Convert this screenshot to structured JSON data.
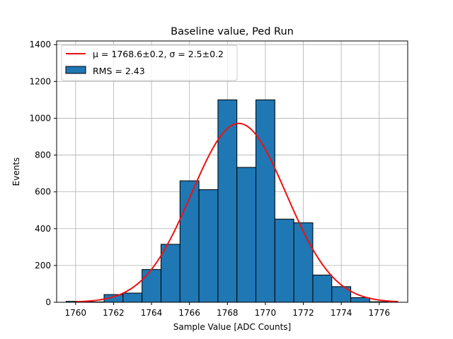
{
  "chart_data": {
    "type": "bar",
    "title": "Baseline value, Ped Run",
    "xlabel": "Sample Value [ADC Counts]",
    "ylabel": "Events",
    "xlim": [
      1759,
      1777.5
    ],
    "ylim": [
      0,
      1420
    ],
    "xticks": [
      1760,
      1762,
      1764,
      1766,
      1768,
      1770,
      1772,
      1774,
      1776
    ],
    "yticks": [
      0,
      200,
      400,
      600,
      800,
      1000,
      1200,
      1400
    ],
    "grid": true,
    "bin_width": 1,
    "bins": [
      {
        "x": 1760,
        "value": 5
      },
      {
        "x": 1761,
        "value": 2
      },
      {
        "x": 1762,
        "value": 42
      },
      {
        "x": 1763,
        "value": 50
      },
      {
        "x": 1764,
        "value": 178
      },
      {
        "x": 1765,
        "value": 315
      },
      {
        "x": 1766,
        "value": 660
      },
      {
        "x": 1767,
        "value": 612
      },
      {
        "x": 1768,
        "value": 1100
      },
      {
        "x": 1769,
        "value": 733
      },
      {
        "x": 1770,
        "value": 1100
      },
      {
        "x": 1771,
        "value": 452
      },
      {
        "x": 1772,
        "value": 432
      },
      {
        "x": 1773,
        "value": 148
      },
      {
        "x": 1774,
        "value": 85
      },
      {
        "x": 1775,
        "value": 25
      },
      {
        "x": 1776,
        "value": 3
      }
    ],
    "fit": {
      "function": "gaussian",
      "mu": 1768.6,
      "sigma": 2.5,
      "amplitude": 972,
      "x_range": [
        1760,
        1777
      ]
    },
    "legend": {
      "location": "upper-left",
      "entries": [
        {
          "kind": "line",
          "label": "μ = 1768.6±0.2, σ = 2.5±0.2"
        },
        {
          "kind": "bar",
          "label": "RMS = 2.43"
        }
      ]
    },
    "colors": {
      "bar_fill": "#1f77b4",
      "bar_edge": "#000000",
      "fit_line": "#ee1111",
      "grid": "#b0b0b0"
    }
  }
}
